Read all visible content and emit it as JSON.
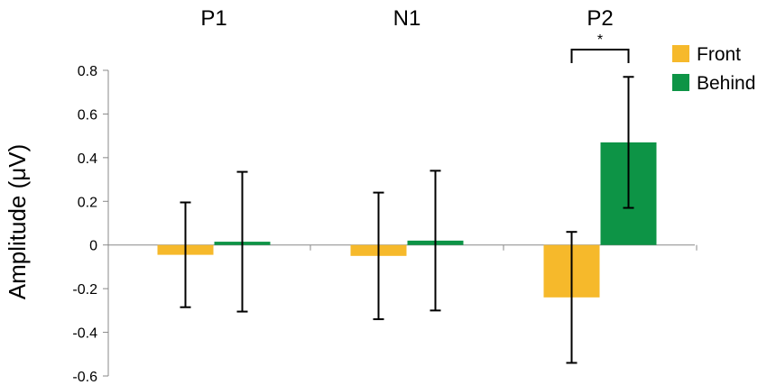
{
  "chart_data": {
    "type": "bar",
    "categories": [
      "P1",
      "N1",
      "P2"
    ],
    "series": [
      {
        "name": "Front",
        "color": "#F6B92B",
        "values": [
          -0.045,
          -0.05,
          -0.24
        ],
        "error": [
          0.24,
          0.29,
          0.3
        ]
      },
      {
        "name": "Behind",
        "color": "#0D9446",
        "values": [
          0.015,
          0.02,
          0.47
        ],
        "error": [
          0.32,
          0.32,
          0.3
        ]
      }
    ],
    "title": "",
    "xlabel": "",
    "ylabel": "Amplitude (μV)",
    "ylim": [
      -0.6,
      0.8
    ],
    "yticks": [
      -0.6,
      -0.4,
      -0.2,
      0,
      0.2,
      0.4,
      0.6,
      0.8
    ],
    "ytick_labels": [
      "-0.6",
      "-0.4",
      "-0.2",
      "0",
      "0.2",
      "0.4",
      "0.6",
      "0.8"
    ],
    "grid": false,
    "legend_position": "top-right",
    "significance": {
      "category_index": 2,
      "label": "*"
    }
  }
}
